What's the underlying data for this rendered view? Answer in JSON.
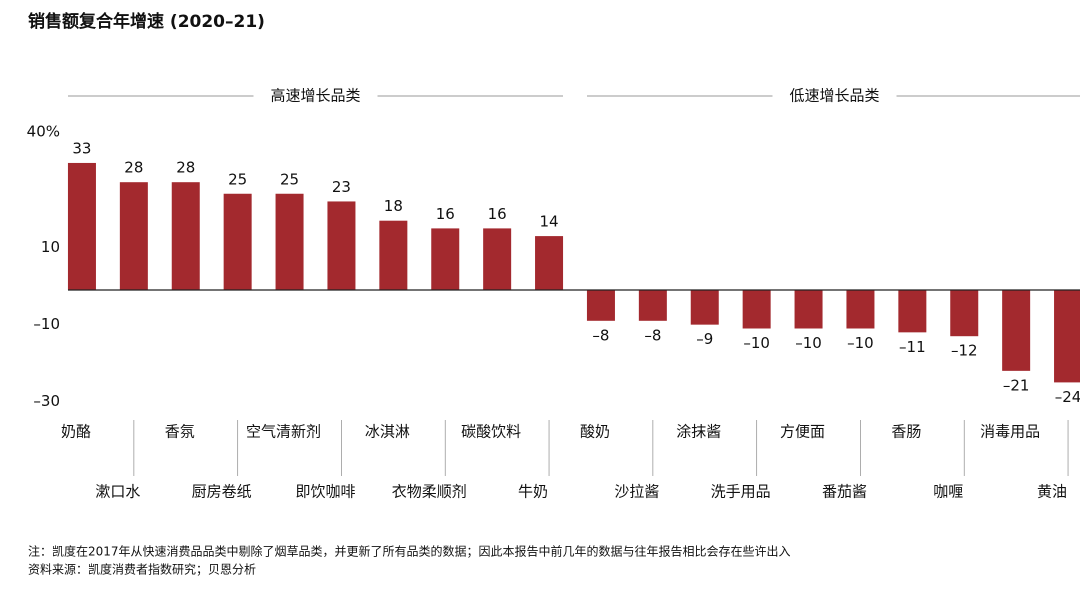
{
  "chart_data": {
    "type": "bar",
    "title": "销售额复合年增速 (2020–21)",
    "groups": [
      "高速增长品类",
      "低速增长品类"
    ],
    "categories": [
      "奶酪",
      "漱口水",
      "香氛",
      "厨房卷纸",
      "空气清新剂",
      "即饮咖啡",
      "冰淇淋",
      "衣物柔顺剂",
      "碳酸饮料",
      "牛奶",
      "酸奶",
      "沙拉酱",
      "涂抹酱",
      "洗手用品",
      "方便面",
      "番茄酱",
      "香肠",
      "咖喱",
      "消毒用品",
      "黄油"
    ],
    "values": [
      33,
      28,
      28,
      25,
      25,
      23,
      18,
      16,
      16,
      14,
      -8,
      -8,
      -9,
      -10,
      -10,
      -10,
      -11,
      -12,
      -21,
      -24
    ],
    "value_labels": [
      "33",
      "28",
      "28",
      "25",
      "25",
      "23",
      "18",
      "16",
      "16",
      "14",
      "–8",
      "–8",
      "–9",
      "–10",
      "–10",
      "–10",
      "–11",
      "–12",
      "–21",
      "–24"
    ],
    "color": "#a3292e",
    "ylim": [
      -30,
      40
    ],
    "yticks": [
      {
        "value": 40,
        "label": "40%"
      },
      10,
      {
        "value": -10,
        "label": "–10"
      },
      {
        "value": -30,
        "label": "–30"
      }
    ],
    "note": "注：凯度在2017年从快速消费品品类中剔除了烟草品类，并更新了所有品类的数据；因此本报告中前几年的数据与往年报告相比会存在些许出入",
    "source": "资料来源：凯度消费者指数研究；贝恩分析"
  }
}
